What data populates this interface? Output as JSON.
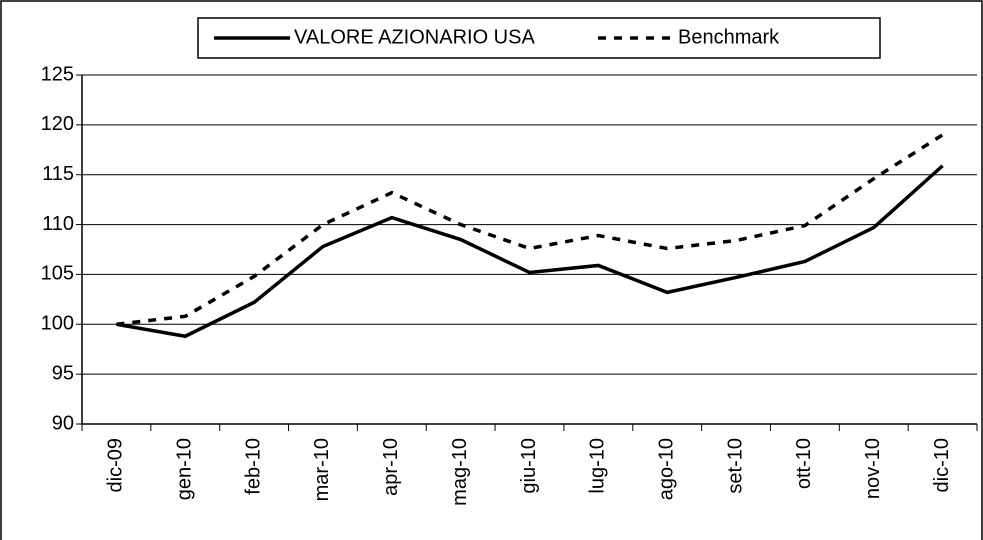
{
  "chart_data": {
    "type": "line",
    "categories": [
      "dic-09",
      "gen-10",
      "feb-10",
      "mar-10",
      "apr-10",
      "mag-10",
      "giu-10",
      "lug-10",
      "ago-10",
      "set-10",
      "ott-10",
      "nov-10",
      "dic-10"
    ],
    "series": [
      {
        "name": "VALORE AZIONARIO USA",
        "color": "#000000",
        "dash": "solid",
        "values": [
          100,
          98.8,
          102.2,
          107.8,
          110.7,
          108.5,
          105.2,
          105.9,
          103.2,
          104.7,
          106.3,
          109.7,
          115.9
        ]
      },
      {
        "name": "Benchmark",
        "color": "#000000",
        "dash": "dashed",
        "values": [
          100,
          100.8,
          104.8,
          110,
          113.2,
          110,
          107.6,
          108.9,
          107.6,
          108.4,
          109.9,
          114.6,
          119
        ]
      }
    ],
    "ylim": [
      90,
      125
    ],
    "yticks": [
      90,
      95,
      100,
      105,
      110,
      115,
      120,
      125
    ],
    "grid": true,
    "legend": "top"
  }
}
